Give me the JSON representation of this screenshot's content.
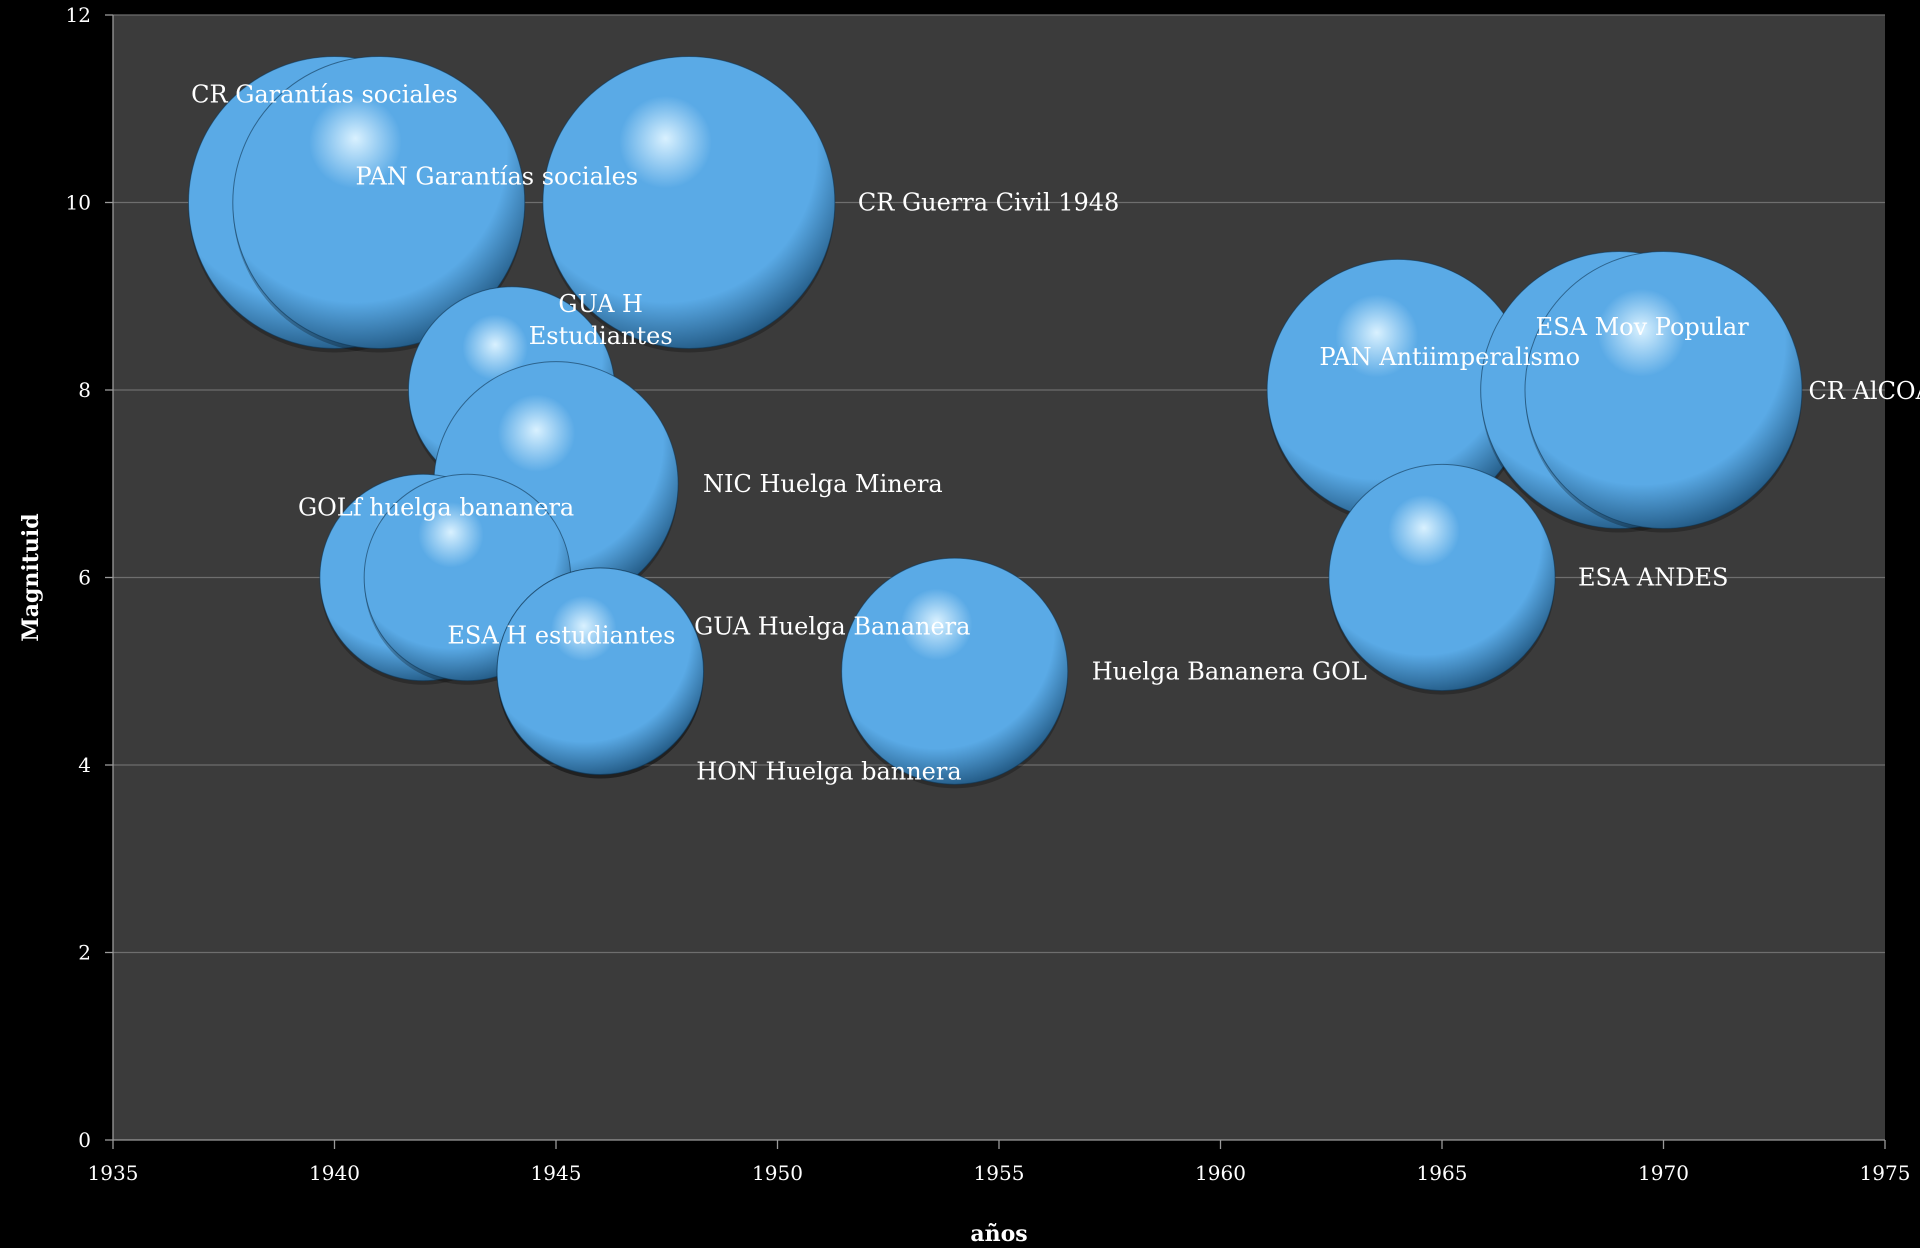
{
  "chart_data": {
    "type": "bubble",
    "xlabel": "años",
    "ylabel": "Magnituid",
    "xlim": [
      1935,
      1975
    ],
    "ylim": [
      0,
      12
    ],
    "x_ticks": [
      "1935",
      "1940",
      "1945",
      "1950",
      "1955",
      "1960",
      "1965",
      "1970",
      "1975"
    ],
    "y_ticks": [
      "0",
      "2",
      "4",
      "6",
      "8",
      "10",
      "12"
    ],
    "grid": "horizontal",
    "colors": {
      "background": "#000000",
      "plot_area": "#3b3b3b",
      "gridline": "#6e6e6e",
      "bubble_light": "#d9f1ff",
      "bubble_mid": "#5aaae6",
      "bubble_dark": "#16486f",
      "text": "#ffffff"
    },
    "points": [
      {
        "label": "CR Garantías sociales",
        "x": 1940,
        "y": 10,
        "size": 10
      },
      {
        "label": "PAN Garantías sociales",
        "x": 1941,
        "y": 10,
        "size": 10
      },
      {
        "label": "CR Guerra Civil  1948",
        "x": 1948,
        "y": 10,
        "size": 10
      },
      {
        "label": "GUA H Estudiantes",
        "x": 1944,
        "y": 8,
        "size": 5
      },
      {
        "label": "NIC Huelga Minera",
        "x": 1945,
        "y": 7,
        "size": 7
      },
      {
        "label": "GOLf huelga bananera",
        "x": 1942,
        "y": 6,
        "size": 5
      },
      {
        "label": "ESA H estudiantes",
        "x": 1943,
        "y": 6,
        "size": 5
      },
      {
        "label": "GUA Huelga Bananera",
        "x": 1946,
        "y": 5,
        "size": 5
      },
      {
        "label": "HON Huelga bannera",
        "x": 1946,
        "y": 5,
        "size": 5
      },
      {
        "label": "Huelga Bananera GOL",
        "x": 1954,
        "y": 5,
        "size": 6
      },
      {
        "label": "PAN Antiimperalismo",
        "x": 1964,
        "y": 8,
        "size": 8
      },
      {
        "label": "ESA Mov Popular",
        "x": 1969,
        "y": 8,
        "size": 9
      },
      {
        "label": "CR AlCOA",
        "x": 1970,
        "y": 8,
        "size": 9
      },
      {
        "label": "ESA ANDES",
        "x": 1965,
        "y": 6,
        "size": 6
      }
    ]
  }
}
